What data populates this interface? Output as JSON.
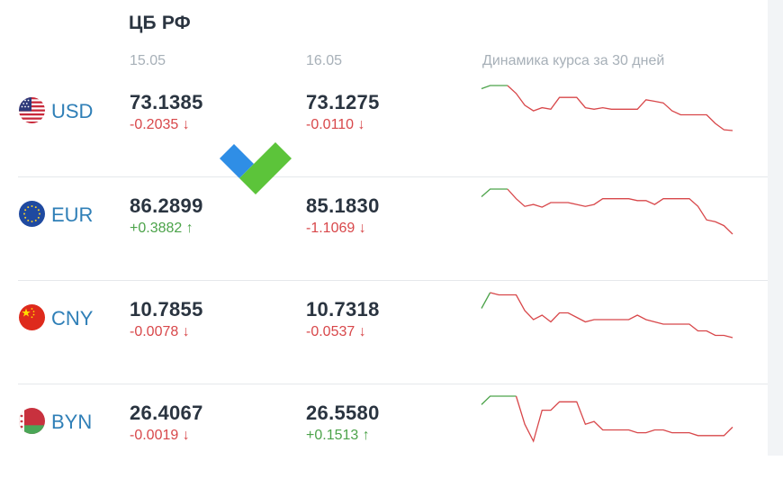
{
  "header": {
    "title": "ЦБ РФ",
    "date1": "15.05",
    "date2": "16.05",
    "dynamics_label": "Динамика курса за 30 дней"
  },
  "colors": {
    "up": "#4ca34a",
    "down": "#d8474a",
    "code": "#2f7fb7"
  },
  "rates": [
    {
      "code": "USD",
      "flag_icon": "usa-flag-icon",
      "d1": {
        "value": "73.1385",
        "change": "-0.2035 ↓",
        "dir": "down"
      },
      "d2": {
        "value": "73.1275",
        "change": "-0.0110 ↓",
        "dir": "down"
      },
      "trend": [
        73.66,
        73.7,
        73.7,
        73.7,
        73.6,
        73.45,
        73.38,
        73.42,
        73.4,
        73.55,
        73.55,
        73.55,
        73.42,
        73.4,
        73.42,
        73.4,
        73.4,
        73.4,
        73.4,
        73.52,
        73.5,
        73.48,
        73.38,
        73.33,
        73.33,
        73.33,
        73.33,
        73.22,
        73.14,
        73.13
      ]
    },
    {
      "code": "EUR",
      "flag_icon": "eu-flag-icon",
      "d1": {
        "value": "86.2899",
        "change": "+0.3882 ↑",
        "dir": "up"
      },
      "d2": {
        "value": "85.1830",
        "change": "-1.1069 ↓",
        "dir": "down"
      },
      "trend": [
        86.15,
        86.35,
        86.35,
        86.35,
        86.1,
        85.9,
        85.95,
        85.88,
        86.0,
        86.0,
        86.0,
        85.95,
        85.9,
        85.95,
        86.1,
        86.1,
        86.1,
        86.1,
        86.05,
        86.05,
        85.95,
        86.1,
        86.1,
        86.1,
        86.1,
        85.9,
        85.55,
        85.5,
        85.4,
        85.18
      ]
    },
    {
      "code": "CNY",
      "flag_icon": "china-flag-icon",
      "d1": {
        "value": "10.7855",
        "change": "-0.0078 ↓",
        "dir": "down"
      },
      "d2": {
        "value": "10.7318",
        "change": "-0.0537 ↓",
        "dir": "down"
      },
      "trend": [
        10.85,
        10.92,
        10.91,
        10.91,
        10.91,
        10.84,
        10.8,
        10.82,
        10.79,
        10.83,
        10.83,
        10.81,
        10.79,
        10.8,
        10.8,
        10.8,
        10.8,
        10.8,
        10.82,
        10.8,
        10.79,
        10.78,
        10.78,
        10.78,
        10.78,
        10.75,
        10.75,
        10.73,
        10.73,
        10.72
      ]
    },
    {
      "code": "BYN",
      "flag_icon": "belarus-flag-icon",
      "d1": {
        "value": "26.4067",
        "change": "-0.0019 ↓",
        "dir": "down"
      },
      "d2": {
        "value": "26.5580",
        "change": "+0.1513 ↑",
        "dir": "up"
      },
      "trend": [
        26.95,
        27.1,
        27.1,
        27.1,
        27.1,
        26.6,
        26.3,
        26.85,
        26.85,
        27.0,
        27.0,
        27.0,
        26.6,
        26.65,
        26.5,
        26.5,
        26.5,
        26.5,
        26.45,
        26.45,
        26.5,
        26.5,
        26.45,
        26.45,
        26.45,
        26.4,
        26.4,
        26.4,
        26.4,
        26.55
      ]
    }
  ]
}
